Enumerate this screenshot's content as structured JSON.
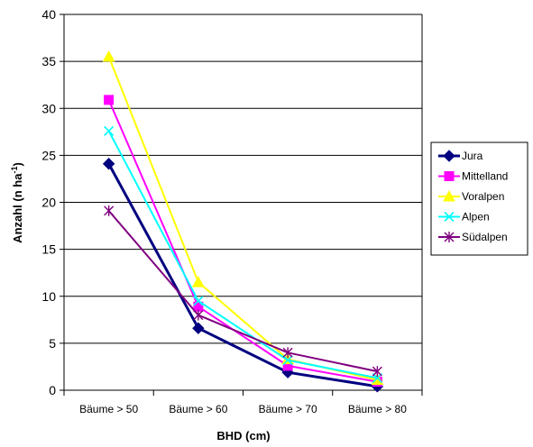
{
  "chart_data": {
    "type": "line",
    "categories": [
      "Bäume > 50",
      "Bäume > 60",
      "Bäume > 70",
      "Bäume > 80"
    ],
    "xlabel": "BHD (cm)",
    "ylabel": "Anzahl (n ha",
    "ylabel_sup": "-1",
    "ylabel_end": ")",
    "ylim": [
      0,
      40
    ],
    "yticks": [
      0,
      5,
      10,
      15,
      20,
      25,
      30,
      35,
      40
    ],
    "grid": true,
    "legend_position": "right",
    "series": [
      {
        "name": "Jura",
        "values": [
          24.1,
          6.6,
          1.9,
          0.4
        ],
        "color": "#000080",
        "marker": "diamond",
        "stroke_width": 3
      },
      {
        "name": "Mittelland",
        "values": [
          30.9,
          8.9,
          2.6,
          0.9
        ],
        "color": "#ff00ff",
        "marker": "square",
        "stroke_width": 2
      },
      {
        "name": "Voralpen",
        "values": [
          35.5,
          11.5,
          3.3,
          1.1
        ],
        "color": "#ffff00",
        "marker": "triangle",
        "stroke_width": 2
      },
      {
        "name": "Alpen",
        "values": [
          27.6,
          9.5,
          3.2,
          1.3
        ],
        "color": "#00ffff",
        "marker": "x",
        "stroke_width": 2
      },
      {
        "name": "Südalpen",
        "values": [
          19.1,
          8.0,
          4.0,
          2.0
        ],
        "color": "#800080",
        "marker": "star",
        "stroke_width": 2
      }
    ]
  }
}
